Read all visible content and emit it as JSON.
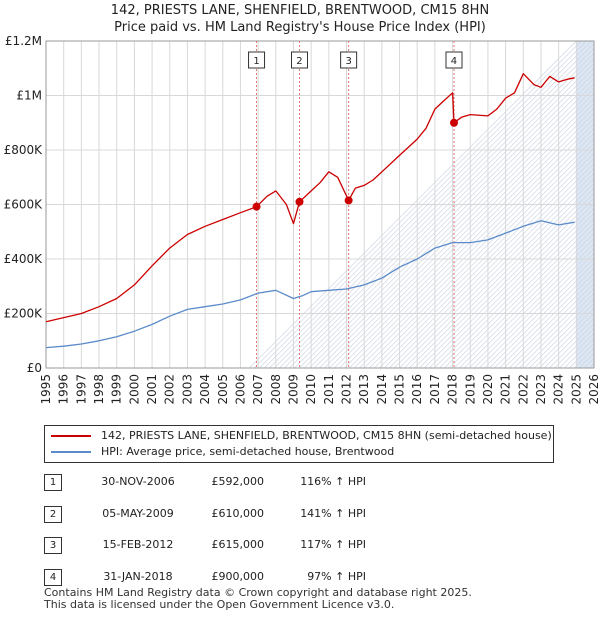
{
  "title_line1": "142, PRIESTS LANE, SHENFIELD, BRENTWOOD, CM15 8HN",
  "title_line2": "Price paid vs. HM Land Registry's House Price Index (HPI)",
  "colors": {
    "property": "#cc0000",
    "hpi": "#5b8bc9",
    "band": "#dde6f3",
    "grid": "#d8d8d8",
    "marker_line": "#dd7777"
  },
  "chart_data": {
    "type": "line",
    "title": "142, PRIESTS LANE, SHENFIELD, BRENTWOOD, CM15 8HN — Price paid vs. HM Land Registry's House Price Index (HPI)",
    "xlabel": "",
    "ylabel": "",
    "xlim": [
      1995,
      2026
    ],
    "ylim": [
      0,
      1200000
    ],
    "y_ticks": [
      0,
      200000,
      400000,
      600000,
      800000,
      1000000,
      1200000
    ],
    "y_tick_labels": [
      "£0",
      "£200K",
      "£400K",
      "£600K",
      "£800K",
      "£1M",
      "£1.2M"
    ],
    "x_ticks": [
      1995,
      1996,
      1997,
      1998,
      1999,
      2000,
      2001,
      2002,
      2003,
      2004,
      2005,
      2006,
      2007,
      2008,
      2009,
      2010,
      2011,
      2012,
      2013,
      2014,
      2015,
      2016,
      2017,
      2018,
      2019,
      2020,
      2021,
      2022,
      2023,
      2024,
      2025,
      2026
    ],
    "x_tick_labels": [
      "1995",
      "1996",
      "1997",
      "1998",
      "1999",
      "2000",
      "2001",
      "2002",
      "2003",
      "2004",
      "2005",
      "2006",
      "2007",
      "2008",
      "2009",
      "2010",
      "2011",
      "2012",
      "2013",
      "2014",
      "2015",
      "2016",
      "2017",
      "2018",
      "2019",
      "2020",
      "2021",
      "2022",
      "2023",
      "2024",
      "2025",
      "2026"
    ],
    "future_band_start": 2025.0,
    "series": [
      {
        "name": "142, PRIESTS LANE, SHENFIELD, BRENTWOOD, CM15 8HN (semi-detached house)",
        "x": [
          1995.0,
          1996.0,
          1997.0,
          1998.0,
          1999.0,
          2000.0,
          2001.0,
          2002.0,
          2003.0,
          2004.0,
          2005.0,
          2006.0,
          2006.91,
          2007.5,
          2008.0,
          2008.6,
          2009.0,
          2009.34,
          2010.0,
          2010.5,
          2011.0,
          2011.5,
          2012.12,
          2012.5,
          2013.0,
          2013.5,
          2014.0,
          2015.0,
          2016.0,
          2016.5,
          2017.0,
          2017.5,
          2018.0,
          2018.08,
          2018.5,
          2019.0,
          2020.0,
          2020.5,
          2021.0,
          2021.5,
          2022.0,
          2022.6,
          2023.0,
          2023.5,
          2024.0,
          2024.5,
          2024.9
        ],
        "values": [
          170000,
          185000,
          200000,
          225000,
          255000,
          305000,
          375000,
          440000,
          490000,
          520000,
          545000,
          570000,
          592000,
          630000,
          650000,
          600000,
          530000,
          610000,
          650000,
          680000,
          720000,
          700000,
          615000,
          660000,
          670000,
          690000,
          720000,
          780000,
          840000,
          880000,
          950000,
          980000,
          1010000,
          900000,
          920000,
          930000,
          925000,
          950000,
          990000,
          1010000,
          1080000,
          1040000,
          1030000,
          1070000,
          1050000,
          1060000,
          1065000
        ]
      },
      {
        "name": "HPI: Average price, semi-detached house, Brentwood",
        "x": [
          1995.0,
          1996.0,
          1997.0,
          1998.0,
          1999.0,
          2000.0,
          2001.0,
          2002.0,
          2003.0,
          2004.0,
          2005.0,
          2006.0,
          2007.0,
          2008.0,
          2009.0,
          2009.5,
          2010.0,
          2011.0,
          2012.0,
          2013.0,
          2014.0,
          2015.0,
          2016.0,
          2017.0,
          2018.0,
          2019.0,
          2020.0,
          2021.0,
          2022.0,
          2023.0,
          2024.0,
          2024.9
        ],
        "values": [
          75000,
          80000,
          88000,
          100000,
          115000,
          135000,
          160000,
          190000,
          215000,
          225000,
          235000,
          250000,
          275000,
          285000,
          255000,
          265000,
          280000,
          285000,
          290000,
          305000,
          330000,
          370000,
          400000,
          440000,
          460000,
          460000,
          470000,
          495000,
          520000,
          540000,
          525000,
          535000
        ]
      }
    ],
    "sales": [
      {
        "label": "1",
        "x": 2006.91,
        "value": 592000
      },
      {
        "label": "2",
        "x": 2009.34,
        "value": 610000
      },
      {
        "label": "3",
        "x": 2012.12,
        "value": 615000
      },
      {
        "label": "4",
        "x": 2018.08,
        "value": 900000
      }
    ]
  },
  "legend": {
    "property_label": "142, PRIESTS LANE, SHENFIELD, BRENTWOOD, CM15 8HN (semi-detached house)",
    "hpi_label": "HPI: Average price, semi-detached house, Brentwood"
  },
  "sales_table": [
    {
      "num": "1",
      "date": "30-NOV-2006",
      "price": "£592,000",
      "hpi": "116% ↑ HPI"
    },
    {
      "num": "2",
      "date": "05-MAY-2009",
      "price": "£610,000",
      "hpi": "141% ↑ HPI"
    },
    {
      "num": "3",
      "date": "15-FEB-2012",
      "price": "£615,000",
      "hpi": "117% ↑ HPI"
    },
    {
      "num": "4",
      "date": "31-JAN-2018",
      "price": "£900,000",
      "hpi": "97% ↑ HPI"
    }
  ],
  "footer_line1": "Contains HM Land Registry data © Crown copyright and database right 2025.",
  "footer_line2": "This data is licensed under the Open Government Licence v3.0."
}
